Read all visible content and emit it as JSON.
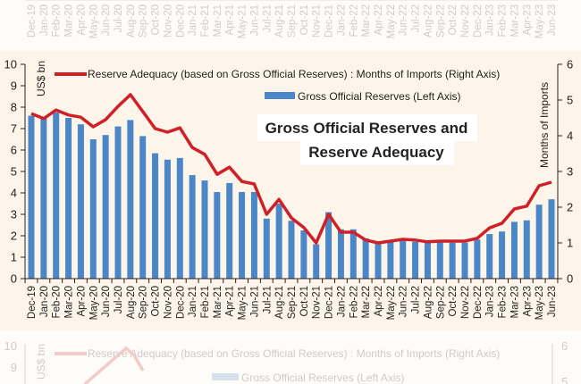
{
  "chart_data": {
    "type": "bar",
    "title": "Gross Official Reserves and Reserve Adequacy",
    "title_lines": [
      "Gross Official Reserves and",
      "Reserve Adequacy"
    ],
    "ylabel_left": "US$ bn",
    "ylabel_right": "Months of Imports",
    "ylim_left": [
      0,
      10
    ],
    "ylim_right": [
      0,
      6
    ],
    "yticks_left": [
      "0",
      "1",
      "2",
      "3",
      "4",
      "5",
      "6",
      "7",
      "8",
      "9",
      "10"
    ],
    "yticks_right": [
      "0",
      "1",
      "2",
      "3",
      "4",
      "5",
      "6"
    ],
    "legend_position": "top",
    "grid": false,
    "categories": [
      "Dec-19",
      "Jan-20",
      "Feb-20",
      "Mar-20",
      "Apr-20",
      "May-20",
      "Jun-20",
      "Jul-20",
      "Aug-20",
      "Sep-20",
      "Oct-20",
      "Nov-20",
      "Dec-20",
      "Jan-21",
      "Feb-21",
      "Mar-21",
      "Apr-21",
      "May-21",
      "Jun-21",
      "Jul-21",
      "Aug-21",
      "Sep-21",
      "Oct-21",
      "Nov-21",
      "Dec-21",
      "Jan-22",
      "Feb-22",
      "Mar-22",
      "Apr-22",
      "May-22",
      "Jun-22",
      "Jul-22",
      "Aug-22",
      "Sep-22",
      "Oct-22",
      "Nov-22",
      "Dec-22",
      "Jan-23",
      "Feb-23",
      "Mar-23",
      "Apr-23",
      "May-23",
      "Jun-23"
    ],
    "series": [
      {
        "name": "Gross Official Reserves (Left Axis)",
        "type": "bar",
        "axis": "left",
        "color": "#4a86c8",
        "values": [
          7.6,
          7.5,
          7.75,
          7.5,
          7.2,
          6.5,
          6.7,
          7.1,
          7.4,
          6.65,
          5.85,
          5.55,
          5.63,
          4.83,
          4.58,
          4.04,
          4.46,
          4.04,
          4.04,
          2.8,
          3.5,
          2.7,
          2.25,
          1.6,
          3.1,
          2.3,
          2.3,
          1.88,
          1.67,
          1.75,
          1.8,
          1.72,
          1.67,
          1.7,
          1.68,
          1.68,
          1.82,
          2.08,
          2.2,
          2.65,
          2.72,
          3.45,
          3.7
        ]
      },
      {
        "name": "Reserve Adequacy (based on Gross Official Reserves) : Months of Imports (Right Axis)",
        "type": "line",
        "axis": "right",
        "color": "#d02027",
        "values": [
          4.62,
          4.48,
          4.72,
          4.58,
          4.52,
          4.25,
          4.45,
          4.82,
          5.15,
          4.68,
          4.2,
          4.1,
          4.22,
          3.67,
          3.48,
          2.92,
          3.12,
          2.72,
          2.65,
          1.8,
          2.22,
          1.7,
          1.43,
          1.0,
          1.8,
          1.3,
          1.3,
          1.08,
          1.0,
          1.05,
          1.1,
          1.08,
          1.03,
          1.05,
          1.05,
          1.05,
          1.13,
          1.42,
          1.55,
          1.95,
          2.03,
          2.6,
          2.7
        ]
      }
    ]
  }
}
